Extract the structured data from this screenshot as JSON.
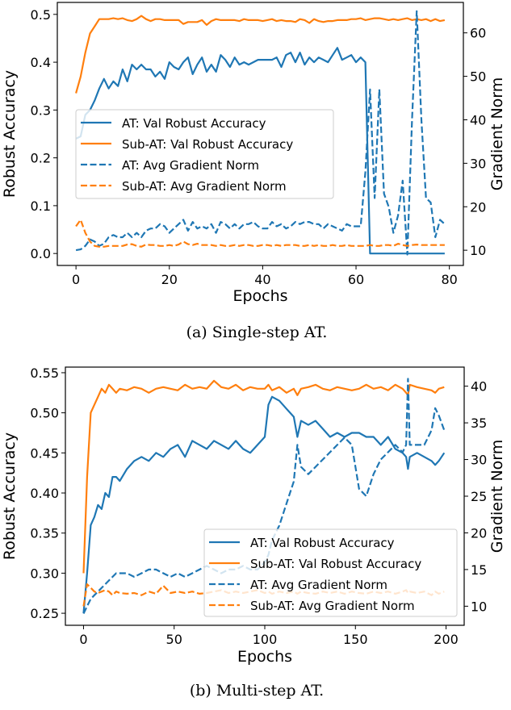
{
  "colors": {
    "blue": "#1f77b4",
    "orange": "#ff7f0e"
  },
  "chart_data": [
    {
      "type": "line",
      "caption": "(a) Single-step AT.",
      "xlabel": "Epochs",
      "ylabel": "Robust Accuracy",
      "y2label": "Gradient Norm",
      "xlim": [
        -4,
        83
      ],
      "ylim": [
        -0.025,
        0.525
      ],
      "y2lim": [
        6.5,
        67
      ],
      "xticks": [
        0,
        20,
        40,
        60,
        80
      ],
      "xtick_labels": [
        "0",
        "20",
        "40",
        "60",
        "80"
      ],
      "yticks": [
        0.0,
        0.1,
        0.2,
        0.3,
        0.4,
        0.5
      ],
      "ytick_labels": [
        "0.0",
        "0.1",
        "0.2",
        "0.3",
        "0.4",
        "0.5"
      ],
      "y2ticks": [
        10,
        20,
        30,
        40,
        50,
        60
      ],
      "y2tick_labels": [
        "10",
        "20",
        "30",
        "40",
        "50",
        "60"
      ],
      "legend_position": "center-left",
      "x": [
        0,
        1,
        2,
        3,
        4,
        5,
        6,
        7,
        8,
        9,
        10,
        11,
        12,
        13,
        14,
        15,
        16,
        17,
        18,
        19,
        20,
        21,
        22,
        23,
        24,
        25,
        26,
        27,
        28,
        29,
        30,
        31,
        32,
        33,
        34,
        35,
        36,
        37,
        38,
        39,
        40,
        41,
        42,
        43,
        44,
        45,
        46,
        47,
        48,
        49,
        50,
        51,
        52,
        53,
        54,
        55,
        56,
        57,
        58,
        59,
        60,
        61,
        62,
        63,
        64,
        65,
        66,
        67,
        68,
        69,
        70,
        71,
        72,
        73,
        74,
        75,
        76,
        77,
        78,
        79
      ],
      "series": [
        {
          "name": "AT: Val Robust Accuracy",
          "axis": "left",
          "color": "blue",
          "dashed": false,
          "values": [
            0.24,
            0.245,
            0.29,
            0.3,
            0.32,
            0.345,
            0.365,
            0.345,
            0.36,
            0.35,
            0.385,
            0.36,
            0.395,
            0.385,
            0.395,
            0.385,
            0.385,
            0.37,
            0.38,
            0.365,
            0.4,
            0.39,
            0.385,
            0.4,
            0.41,
            0.375,
            0.395,
            0.41,
            0.38,
            0.395,
            0.38,
            0.415,
            0.405,
            0.39,
            0.41,
            0.395,
            0.4,
            0.395,
            0.4,
            0.405,
            0.405,
            0.405,
            0.405,
            0.41,
            0.39,
            0.415,
            0.42,
            0.4,
            0.42,
            0.395,
            0.41,
            0.4,
            0.41,
            0.405,
            0.4,
            0.415,
            0.43,
            0.405,
            0.41,
            0.415,
            0.4,
            0.41,
            0.4,
            0,
            0,
            0,
            0,
            0,
            0,
            0,
            0,
            0,
            0,
            0,
            0,
            0,
            0,
            0,
            0,
            0
          ]
        },
        {
          "name": "Sub-AT: Val Robust Accuracy",
          "axis": "left",
          "color": "orange",
          "dashed": false,
          "values": [
            0.335,
            0.37,
            0.42,
            0.46,
            0.475,
            0.49,
            0.49,
            0.49,
            0.492,
            0.49,
            0.492,
            0.488,
            0.486,
            0.49,
            0.497,
            0.49,
            0.486,
            0.49,
            0.49,
            0.488,
            0.488,
            0.488,
            0.488,
            0.48,
            0.484,
            0.484,
            0.484,
            0.488,
            0.478,
            0.486,
            0.49,
            0.488,
            0.488,
            0.488,
            0.488,
            0.486,
            0.49,
            0.488,
            0.488,
            0.488,
            0.486,
            0.488,
            0.49,
            0.486,
            0.488,
            0.486,
            0.486,
            0.484,
            0.49,
            0.488,
            0.482,
            0.49,
            0.486,
            0.484,
            0.486,
            0.486,
            0.488,
            0.488,
            0.488,
            0.49,
            0.49,
            0.492,
            0.488,
            0.49,
            0.492,
            0.492,
            0.49,
            0.488,
            0.49,
            0.488,
            0.49,
            0.492,
            0.488,
            0.49,
            0.488,
            0.49,
            0.486,
            0.49,
            0.486,
            0.488
          ]
        },
        {
          "name": "AT: Avg Gradient Norm",
          "axis": "right",
          "color": "blue",
          "dashed": true,
          "values": [
            10,
            10.2,
            11,
            12.5,
            12,
            11,
            11.5,
            13,
            13.5,
            13,
            13,
            14,
            13,
            14,
            13,
            14.5,
            15,
            15,
            16,
            15.5,
            14,
            15,
            16,
            17,
            14.5,
            16.5,
            15,
            15.5,
            15,
            16,
            14,
            16.5,
            16,
            15,
            16,
            15,
            16,
            16,
            16.5,
            15.5,
            15,
            15,
            16.5,
            15.5,
            16,
            15,
            15.5,
            16.5,
            16,
            16.5,
            16.5,
            16,
            16,
            15,
            16,
            15.5,
            15,
            14.5,
            16,
            15.5,
            15.5,
            15.5,
            28,
            47,
            22,
            47,
            23,
            20,
            14,
            18,
            26,
            9,
            40,
            65,
            40,
            22,
            21,
            13,
            17,
            16
          ]
        },
        {
          "name": "Sub-AT: Avg Gradient Norm",
          "axis": "right",
          "color": "orange",
          "dashed": true,
          "values": [
            15.5,
            17,
            14,
            12,
            11,
            10.8,
            10.8,
            11,
            11,
            11,
            11,
            11.3,
            11.4,
            11,
            10.8,
            11.3,
            11.2,
            11.2,
            11,
            11,
            11.2,
            11,
            11.3,
            12,
            11.4,
            11.2,
            11.5,
            11.2,
            11.2,
            11.2,
            11,
            11.2,
            11,
            11,
            11.2,
            11,
            11.2,
            11.2,
            11,
            11,
            11.2,
            11.2,
            11,
            11.2,
            11,
            11.2,
            11.2,
            11.2,
            11,
            11,
            11.2,
            11,
            11.2,
            11,
            11,
            11.2,
            11,
            11,
            11.2,
            11,
            11,
            11,
            11,
            11.2,
            11,
            11,
            11.2,
            11.2,
            11,
            11.5,
            11.2,
            11,
            11.2,
            11.3,
            11.2,
            11.2,
            11.2,
            11.2,
            11.2,
            11.2
          ]
        }
      ]
    },
    {
      "type": "line",
      "caption": "(b) Multi-step AT.",
      "xlabel": "Epochs",
      "ylabel": "Robust Accuracy",
      "y2label": "Gradient Norm",
      "xlim": [
        -10,
        210
      ],
      "ylim": [
        0.235,
        0.557
      ],
      "y2lim": [
        7.4,
        42.6
      ],
      "xticks": [
        0,
        50,
        100,
        150,
        200
      ],
      "xtick_labels": [
        "0",
        "50",
        "100",
        "150",
        "200"
      ],
      "yticks": [
        0.25,
        0.3,
        0.35,
        0.4,
        0.45,
        0.5,
        0.55
      ],
      "ytick_labels": [
        "0.25",
        "0.30",
        "0.35",
        "0.40",
        "0.45",
        "0.50",
        "0.55"
      ],
      "y2ticks": [
        10,
        15,
        20,
        25,
        30,
        35,
        40
      ],
      "y2tick_labels": [
        "10",
        "15",
        "20",
        "25",
        "30",
        "35",
        "40"
      ],
      "legend_position": "lower-right",
      "x": [
        0,
        2,
        4,
        6,
        8,
        10,
        12,
        14,
        16,
        18,
        20,
        24,
        28,
        32,
        36,
        40,
        44,
        48,
        52,
        56,
        60,
        64,
        68,
        72,
        76,
        80,
        84,
        88,
        92,
        96,
        100,
        102,
        104,
        108,
        112,
        116,
        118,
        120,
        124,
        128,
        132,
        136,
        140,
        144,
        148,
        152,
        156,
        160,
        164,
        168,
        172,
        176,
        178,
        179,
        180,
        184,
        188,
        192,
        194,
        196,
        199
      ],
      "series": [
        {
          "name": "AT: Val Robust Accuracy",
          "axis": "left",
          "color": "blue",
          "dashed": false,
          "values": [
            0.25,
            0.3,
            0.36,
            0.37,
            0.385,
            0.38,
            0.4,
            0.395,
            0.42,
            0.42,
            0.415,
            0.43,
            0.44,
            0.445,
            0.44,
            0.45,
            0.445,
            0.455,
            0.46,
            0.445,
            0.465,
            0.46,
            0.455,
            0.465,
            0.46,
            0.455,
            0.465,
            0.455,
            0.45,
            0.46,
            0.47,
            0.51,
            0.52,
            0.515,
            0.505,
            0.495,
            0.47,
            0.49,
            0.485,
            0.49,
            0.48,
            0.47,
            0.475,
            0.47,
            0.475,
            0.475,
            0.47,
            0.47,
            0.46,
            0.47,
            0.455,
            0.45,
            0.445,
            0.43,
            0.445,
            0.45,
            0.445,
            0.44,
            0.435,
            0.44,
            0.45
          ]
        },
        {
          "name": "Sub-AT: Val Robust Accuracy",
          "axis": "left",
          "color": "orange",
          "dashed": false,
          "values": [
            0.3,
            0.42,
            0.5,
            0.51,
            0.52,
            0.53,
            0.525,
            0.535,
            0.53,
            0.525,
            0.53,
            0.528,
            0.532,
            0.53,
            0.525,
            0.53,
            0.532,
            0.53,
            0.528,
            0.535,
            0.53,
            0.532,
            0.53,
            0.54,
            0.532,
            0.53,
            0.535,
            0.528,
            0.532,
            0.53,
            0.53,
            0.535,
            0.528,
            0.532,
            0.525,
            0.53,
            0.522,
            0.53,
            0.532,
            0.535,
            0.53,
            0.528,
            0.532,
            0.53,
            0.528,
            0.53,
            0.535,
            0.53,
            0.532,
            0.528,
            0.535,
            0.53,
            0.525,
            0.522,
            0.535,
            0.532,
            0.53,
            0.528,
            0.525,
            0.53,
            0.532
          ]
        },
        {
          "name": "AT: Avg Gradient Norm",
          "axis": "right",
          "color": "blue",
          "dashed": true,
          "values": [
            9,
            10,
            11,
            11.5,
            12,
            12.5,
            13,
            13.5,
            14,
            14.5,
            14.5,
            14.5,
            14,
            14.5,
            15,
            15,
            14.5,
            14,
            14.5,
            14,
            14.5,
            15,
            15.5,
            15,
            14.5,
            15,
            15,
            15.5,
            15,
            15,
            16,
            17,
            19,
            21,
            24,
            27,
            32,
            29,
            28,
            29,
            30,
            31,
            32,
            33,
            32,
            26,
            25,
            28,
            30,
            31,
            32,
            31,
            32,
            41,
            32,
            32,
            32,
            34,
            37,
            36,
            34
          ]
        },
        {
          "name": "Sub-AT: Avg Gradient Norm",
          "axis": "right",
          "color": "orange",
          "dashed": true,
          "values": [
            10,
            13,
            12.5,
            12,
            11.8,
            12,
            12.2,
            12,
            11.5,
            12,
            11.8,
            11.7,
            11.8,
            11.5,
            12,
            11.7,
            12.8,
            11.8,
            12,
            11.8,
            12,
            11.7,
            11.8,
            12,
            12.2,
            11.8,
            12,
            11.8,
            12,
            12.2,
            11.8,
            12,
            11.7,
            12,
            11.8,
            12,
            11.7,
            12,
            11.8,
            11.7,
            12,
            11.8,
            12,
            11.7,
            12,
            11.8,
            11.7,
            12,
            11.8,
            12,
            11.7,
            12,
            12.2,
            11.8,
            12,
            11.8,
            12,
            11.5,
            12,
            11.7,
            12
          ]
        }
      ]
    }
  ]
}
